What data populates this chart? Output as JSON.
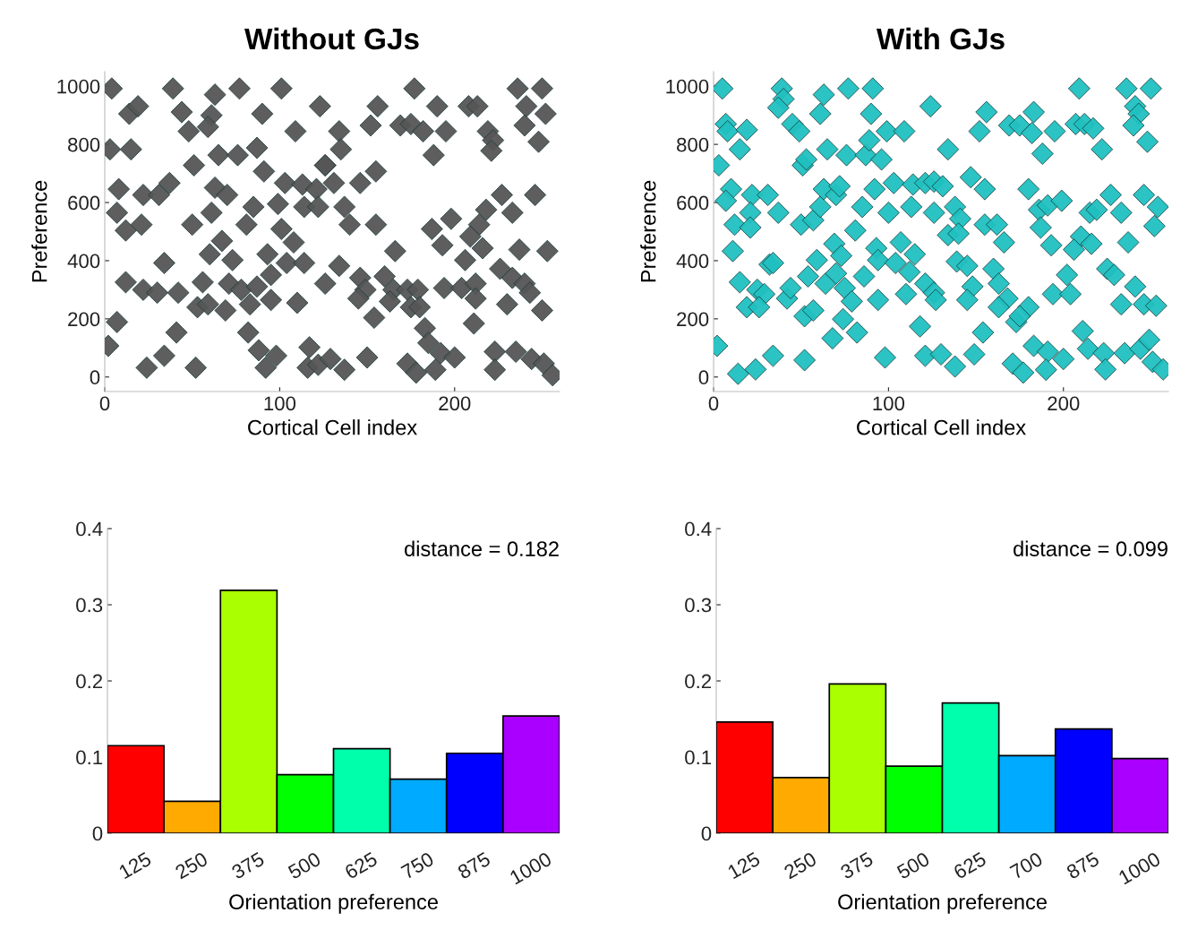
{
  "chart_data": [
    {
      "type": "scatter",
      "title": "Without GJs",
      "xlabel": "Cortical Cell index",
      "ylabel": "Preference",
      "marker": "diamond",
      "color": "#555555",
      "xlim": [
        0,
        260
      ],
      "ylim": [
        -50,
        1050
      ],
      "xticks": [
        0,
        100,
        200
      ],
      "yticks": [
        0,
        200,
        400,
        600,
        800,
        1000
      ],
      "x": [
        4,
        39,
        63,
        77,
        101,
        14,
        19,
        44,
        48,
        61,
        59,
        90,
        109,
        123,
        3,
        15,
        51,
        65,
        76,
        87,
        91,
        126,
        8,
        22,
        31,
        37,
        63,
        70,
        7,
        12,
        21,
        50,
        61,
        81,
        85,
        99,
        103,
        113,
        121,
        114,
        122,
        101,
        108,
        67,
        60,
        34,
        12,
        22,
        30,
        42,
        56,
        53,
        59,
        69,
        71,
        73,
        78,
        83,
        87,
        93,
        95,
        95,
        104,
        114,
        110,
        126,
        7,
        2,
        41,
        34,
        24,
        52,
        82,
        88,
        92,
        98,
        117,
        116,
        122,
        156,
        152,
        177,
        169,
        175,
        182,
        195,
        190,
        208,
        213,
        188,
        219,
        222,
        221,
        236,
        250,
        241,
        252,
        240,
        248,
        134,
        135,
        126,
        131,
        146,
        155,
        137,
        140,
        155,
        166,
        187,
        198,
        193,
        218,
        214,
        209,
        216,
        227,
        233,
        246,
        253,
        237,
        206,
        134,
        146,
        149,
        145,
        160,
        165,
        173,
        179,
        163,
        175,
        180,
        154,
        194,
        204,
        212,
        212,
        226,
        233,
        240,
        243,
        230,
        250,
        211,
        183,
        185,
        192,
        200,
        173,
        178,
        189,
        129,
        137,
        150,
        223,
        223,
        235,
        244,
        251,
        256
      ],
      "values": [
        992,
        992,
        971,
        992,
        992,
        905,
        931,
        911,
        845,
        900,
        860,
        905,
        845,
        931,
        783,
        783,
        728,
        763,
        763,
        788,
        707,
        728,
        646,
        626,
        626,
        667,
        651,
        626,
        565,
        504,
        524,
        524,
        565,
        524,
        585,
        595,
        667,
        662,
        646,
        585,
        585,
        509,
        463,
        468,
        422,
        392,
        326,
        300,
        290,
        290,
        326,
        240,
        250,
        229,
        321,
        402,
        300,
        250,
        311,
        422,
        351,
        265,
        392,
        392,
        255,
        321,
        189,
        107,
        153,
        73,
        32,
        32,
        153,
        92,
        32,
        73,
        102,
        32,
        42,
        931,
        865,
        992,
        865,
        870,
        845,
        845,
        931,
        931,
        931,
        763,
        845,
        814,
        778,
        992,
        992,
        931,
        905,
        865,
        809,
        845,
        783,
        728,
        667,
        667,
        707,
        585,
        524,
        524,
        433,
        509,
        544,
        453,
        575,
        524,
        483,
        443,
        626,
        565,
        626,
        433,
        438,
        402,
        382,
        341,
        300,
        270,
        346,
        300,
        300,
        300,
        260,
        240,
        240,
        204,
        306,
        306,
        321,
        270,
        372,
        341,
        321,
        290,
        250,
        229,
        184,
        168,
        117,
        82,
        67,
        46,
        15,
        25,
        62,
        25,
        67,
        87,
        25,
        87,
        62,
        46,
        6
      ]
    },
    {
      "type": "scatter",
      "title": "With GJs",
      "xlabel": "Cortical Cell index",
      "ylabel": "Preference",
      "marker": "diamond",
      "color": "#20c0c0",
      "xlim": [
        0,
        260
      ],
      "ylim": [
        -50,
        1050
      ],
      "xticks": [
        0,
        100,
        200
      ],
      "yticks": [
        0,
        200,
        400,
        600,
        800,
        1000
      ],
      "x": [
        5,
        39,
        40,
        37,
        63,
        61,
        77,
        91,
        90,
        124,
        7,
        8,
        19,
        15,
        45,
        49,
        3,
        51,
        53,
        65,
        76,
        87,
        89,
        96,
        99,
        109,
        10,
        7,
        22,
        31,
        21,
        37,
        12,
        21,
        50,
        57,
        61,
        63,
        70,
        72,
        81,
        85,
        92,
        100,
        103,
        114,
        121,
        113,
        11,
        15,
        32,
        34,
        25,
        29,
        19,
        26,
        42,
        44,
        52,
        57,
        54,
        59,
        64,
        69,
        73,
        70,
        75,
        79,
        74,
        86,
        93,
        94,
        104,
        107,
        115,
        112,
        94,
        110,
        121,
        126,
        2,
        14,
        24,
        34,
        52,
        68,
        82,
        98,
        118,
        121,
        156,
        152,
        134,
        169,
        175,
        183,
        182,
        195,
        188,
        209,
        207,
        212,
        217,
        222,
        236,
        250,
        241,
        243,
        240,
        248,
        126,
        131,
        126,
        138,
        141,
        134,
        140,
        147,
        155,
        155,
        162,
        166,
        180,
        186,
        191,
        199,
        187,
        193,
        210,
        206,
        216,
        215,
        219,
        227,
        233,
        246,
        254,
        252,
        237,
        139,
        145,
        148,
        145,
        160,
        163,
        168,
        163,
        173,
        180,
        175,
        202,
        194,
        204,
        225,
        229,
        241,
        233,
        246,
        253,
        127,
        154,
        149,
        130,
        138,
        171,
        177,
        183,
        191,
        200,
        190,
        211,
        214,
        223,
        224,
        235,
        244,
        249,
        251,
        257
      ],
      "values": [
        992,
        992,
        956,
        926,
        971,
        905,
        992,
        992,
        905,
        931,
        870,
        845,
        850,
        783,
        870,
        845,
        728,
        728,
        748,
        783,
        763,
        763,
        814,
        748,
        845,
        845,
        646,
        606,
        626,
        626,
        565,
        565,
        524,
        514,
        524,
        539,
        585,
        646,
        626,
        656,
        504,
        585,
        646,
        565,
        667,
        662,
        667,
        585,
        433,
        326,
        387,
        392,
        300,
        285,
        240,
        240,
        270,
        306,
        209,
        229,
        346,
        402,
        321,
        458,
        417,
        356,
        306,
        260,
        199,
        346,
        443,
        402,
        392,
        463,
        422,
        361,
        265,
        285,
        321,
        290,
        107,
        11,
        26,
        73,
        58,
        133,
        153,
        67,
        174,
        73,
        911,
        845,
        783,
        865,
        865,
        911,
        839,
        845,
        768,
        992,
        870,
        870,
        855,
        783,
        992,
        992,
        931,
        905,
        865,
        809,
        672,
        656,
        565,
        585,
        544,
        488,
        493,
        687,
        646,
        524,
        524,
        463,
        646,
        575,
        590,
        606,
        514,
        453,
        483,
        438,
        458,
        565,
        575,
        626,
        565,
        626,
        585,
        519,
        463,
        397,
        382,
        311,
        265,
        372,
        321,
        270,
        240,
        189,
        240,
        209,
        351,
        285,
        285,
        372,
        351,
        311,
        250,
        250,
        245,
        265,
        153,
        78,
        78,
        36,
        46,
        15,
        107,
        87,
        62,
        25,
        158,
        97,
        82,
        26,
        82,
        97,
        128,
        52,
        26
      ]
    },
    {
      "type": "bar",
      "xlabel": "Orientation preference",
      "categories": [
        "125",
        "250",
        "375",
        "500",
        "625",
        "750",
        "875",
        "1000"
      ],
      "values": [
        0.115,
        0.042,
        0.319,
        0.077,
        0.111,
        0.071,
        0.105,
        0.154
      ],
      "colors": [
        "#ff0000",
        "#ffaa00",
        "#aaff00",
        "#00ff00",
        "#00ffaa",
        "#00aaff",
        "#0000ff",
        "#aa00ff"
      ],
      "ylim": [
        0,
        0.4
      ],
      "yticks": [
        0,
        0.1,
        0.2,
        0.3,
        0.4
      ],
      "annotations": [
        "distance = 0.182"
      ]
    },
    {
      "type": "bar",
      "xlabel": "Orientation preference",
      "categories": [
        "125",
        "250",
        "375",
        "500",
        "625",
        "700",
        "875",
        "1000"
      ],
      "values": [
        0.146,
        0.073,
        0.196,
        0.088,
        0.171,
        0.102,
        0.137,
        0.098
      ],
      "colors": [
        "#ff0000",
        "#ffaa00",
        "#aaff00",
        "#00ff00",
        "#00ffaa",
        "#00aaff",
        "#0000ff",
        "#aa00ff"
      ],
      "ylim": [
        0,
        0.4
      ],
      "yticks": [
        0,
        0.1,
        0.2,
        0.3,
        0.4
      ],
      "annotations": [
        "distance = 0.099"
      ]
    }
  ]
}
